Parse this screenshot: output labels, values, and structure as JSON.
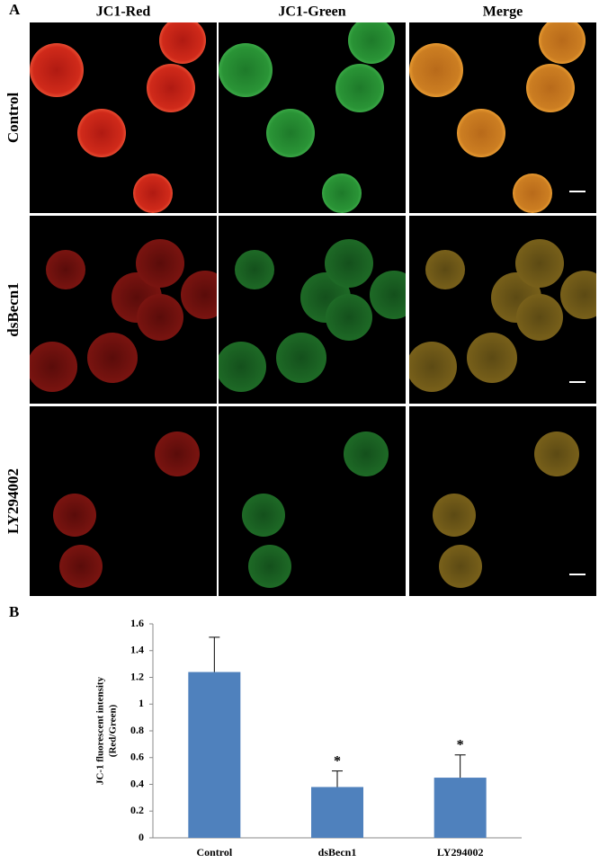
{
  "panel_a": {
    "label": "A",
    "columns": [
      "JC1-Red",
      "JC1-Green",
      "Merge"
    ],
    "rows": [
      "Control",
      "dsBecn1",
      "LY294002"
    ]
  },
  "panel_b": {
    "label": "B"
  },
  "chart_data": {
    "type": "bar",
    "y_label": [
      "JC-1 fluorescent intensity",
      "(Red/Green)"
    ],
    "categories": [
      "Control",
      "dsBecn1",
      "LY294002"
    ],
    "values": [
      1.24,
      0.38,
      0.45
    ],
    "errors": [
      0.26,
      0.12,
      0.17
    ],
    "significance": [
      null,
      "*",
      "*"
    ],
    "color": "#4f81bd",
    "ylim": [
      0,
      1.6
    ],
    "yticks": [
      0,
      0.2,
      0.4,
      0.6,
      0.8,
      1,
      1.2,
      1.4,
      1.6
    ],
    "grid": false
  }
}
